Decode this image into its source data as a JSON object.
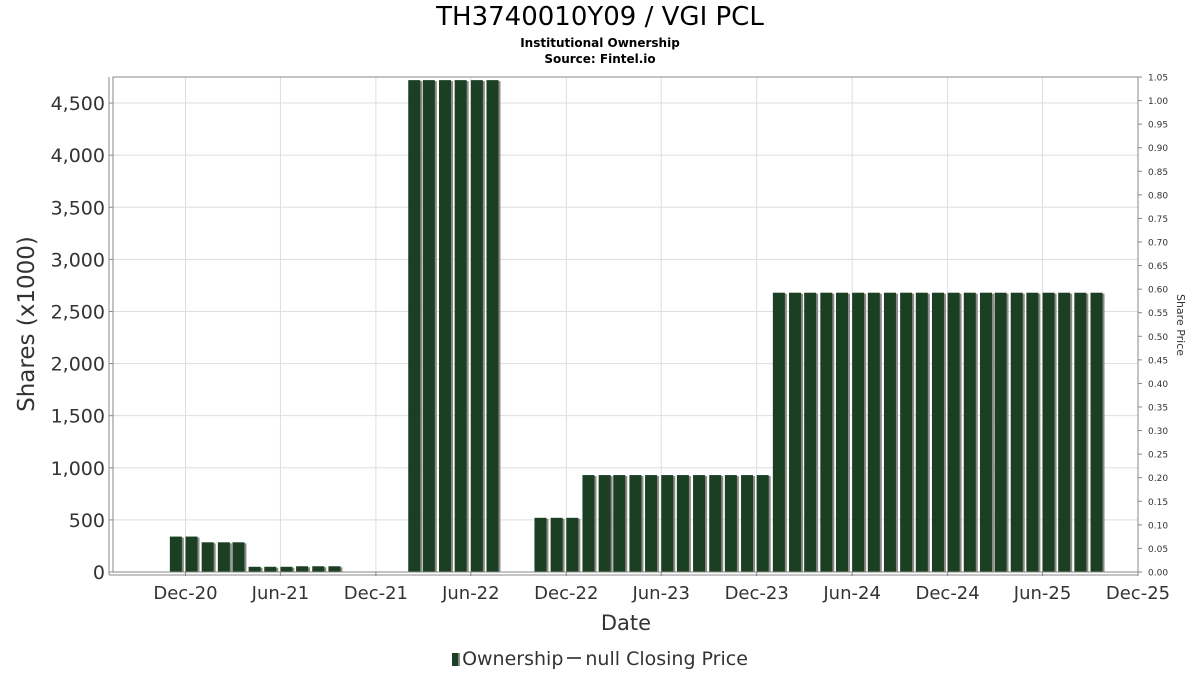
{
  "header": {
    "title": "TH3740010Y09 / VGI PCL",
    "subtitle": "Institutional Ownership",
    "source": "Source: Fintel.io"
  },
  "legend": {
    "ownership_label": "Ownership",
    "price_label": "null Closing Price"
  },
  "colors": {
    "bar": "#1b3f23",
    "bar_shadow": "#8a8a8a",
    "grid": "#dedede",
    "axis": "#888888"
  },
  "chart_data": {
    "type": "bar",
    "xlabel": "Date",
    "ylabel": "Shares (x1000)",
    "y2label": "Share Price",
    "ylim": [
      0,
      4750
    ],
    "y2lim": [
      0,
      1.05
    ],
    "grid": true,
    "legend_position": "bottom",
    "xlim": [
      "2020-07-15",
      "2025-12-01"
    ],
    "x_ticks": [
      "Dec-20",
      "Jun-21",
      "Dec-21",
      "Jun-22",
      "Dec-22",
      "Jun-23",
      "Dec-23",
      "Jun-24",
      "Dec-24",
      "Jun-25",
      "Dec-25"
    ],
    "y_ticks": [
      "0",
      "500",
      "1,000",
      "1,500",
      "2,000",
      "2,500",
      "3,000",
      "3,500",
      "4,000",
      "4,500"
    ],
    "y2_ticks": [
      "0.00",
      "0.05",
      "0.10",
      "0.15",
      "0.20",
      "0.25",
      "0.30",
      "0.35",
      "0.40",
      "0.45",
      "0.50",
      "0.55",
      "0.60",
      "0.65",
      "0.70",
      "0.75",
      "0.80",
      "0.85",
      "0.90",
      "0.95",
      "1.00",
      "1.05"
    ],
    "series": [
      {
        "name": "Ownership",
        "x": [
          "2020-11-01",
          "2020-12-01",
          "2021-01-01",
          "2021-02-01",
          "2021-03-01",
          "2021-04-01",
          "2021-05-01",
          "2021-06-01",
          "2021-07-01",
          "2021-08-01",
          "2021-09-01",
          "2022-02-01",
          "2022-03-01",
          "2022-04-01",
          "2022-05-01",
          "2022-06-01",
          "2022-07-01",
          "2022-10-01",
          "2022-11-01",
          "2022-12-01",
          "2023-01-01",
          "2023-02-01",
          "2023-03-01",
          "2023-04-01",
          "2023-05-01",
          "2023-06-01",
          "2023-07-01",
          "2023-08-01",
          "2023-09-01",
          "2023-10-01",
          "2023-11-01",
          "2023-12-01",
          "2024-01-01",
          "2024-02-01",
          "2024-03-01",
          "2024-04-01",
          "2024-05-01",
          "2024-06-01",
          "2024-07-01",
          "2024-08-01",
          "2024-09-01",
          "2024-10-01",
          "2024-11-01",
          "2024-12-01",
          "2025-01-01",
          "2025-02-01",
          "2025-03-01",
          "2025-04-01",
          "2025-05-01",
          "2025-06-01",
          "2025-07-01",
          "2025-08-01",
          "2025-09-01"
        ],
        "values": [
          340,
          340,
          285,
          285,
          285,
          50,
          50,
          50,
          55,
          55,
          55,
          4720,
          4720,
          4720,
          4720,
          4720,
          4720,
          520,
          520,
          520,
          930,
          930,
          930,
          930,
          930,
          930,
          930,
          930,
          930,
          930,
          930,
          930,
          2680,
          2680,
          2680,
          2680,
          2680,
          2680,
          2680,
          2680,
          2680,
          2680,
          2680,
          2680,
          2680,
          2680,
          2680,
          2680,
          2680,
          2680,
          2680,
          2680,
          2680
        ]
      }
    ]
  }
}
